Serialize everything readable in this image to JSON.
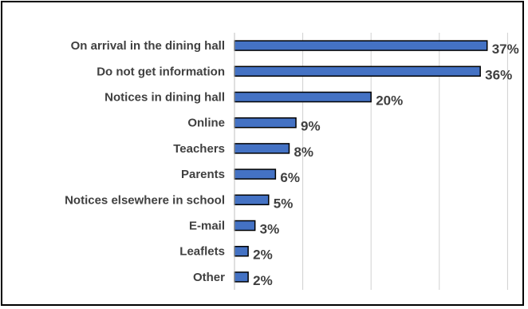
{
  "chart_data": {
    "type": "bar",
    "orientation": "horizontal",
    "categories": [
      "On arrival in the dining hall",
      "Do not get information",
      "Notices in dining hall",
      "Online",
      "Teachers",
      "Parents",
      "Notices elsewhere in school",
      "E-mail",
      "Leaflets",
      "Other"
    ],
    "values": [
      37,
      36,
      20,
      9,
      8,
      6,
      5,
      3,
      2,
      2
    ],
    "value_labels": [
      "37%",
      "36%",
      "20%",
      "9%",
      "8%",
      "6%",
      "5%",
      "3%",
      "2%",
      "2%"
    ],
    "unit": "%",
    "xlim": [
      0,
      40
    ],
    "grid": true,
    "legend": "none",
    "title": "",
    "xlabel": "",
    "ylabel": "",
    "colors": {
      "bar_fill": "#4472C4",
      "bar_stroke": "#000000",
      "label": "#404040",
      "grid": "#d0d0d0"
    }
  }
}
